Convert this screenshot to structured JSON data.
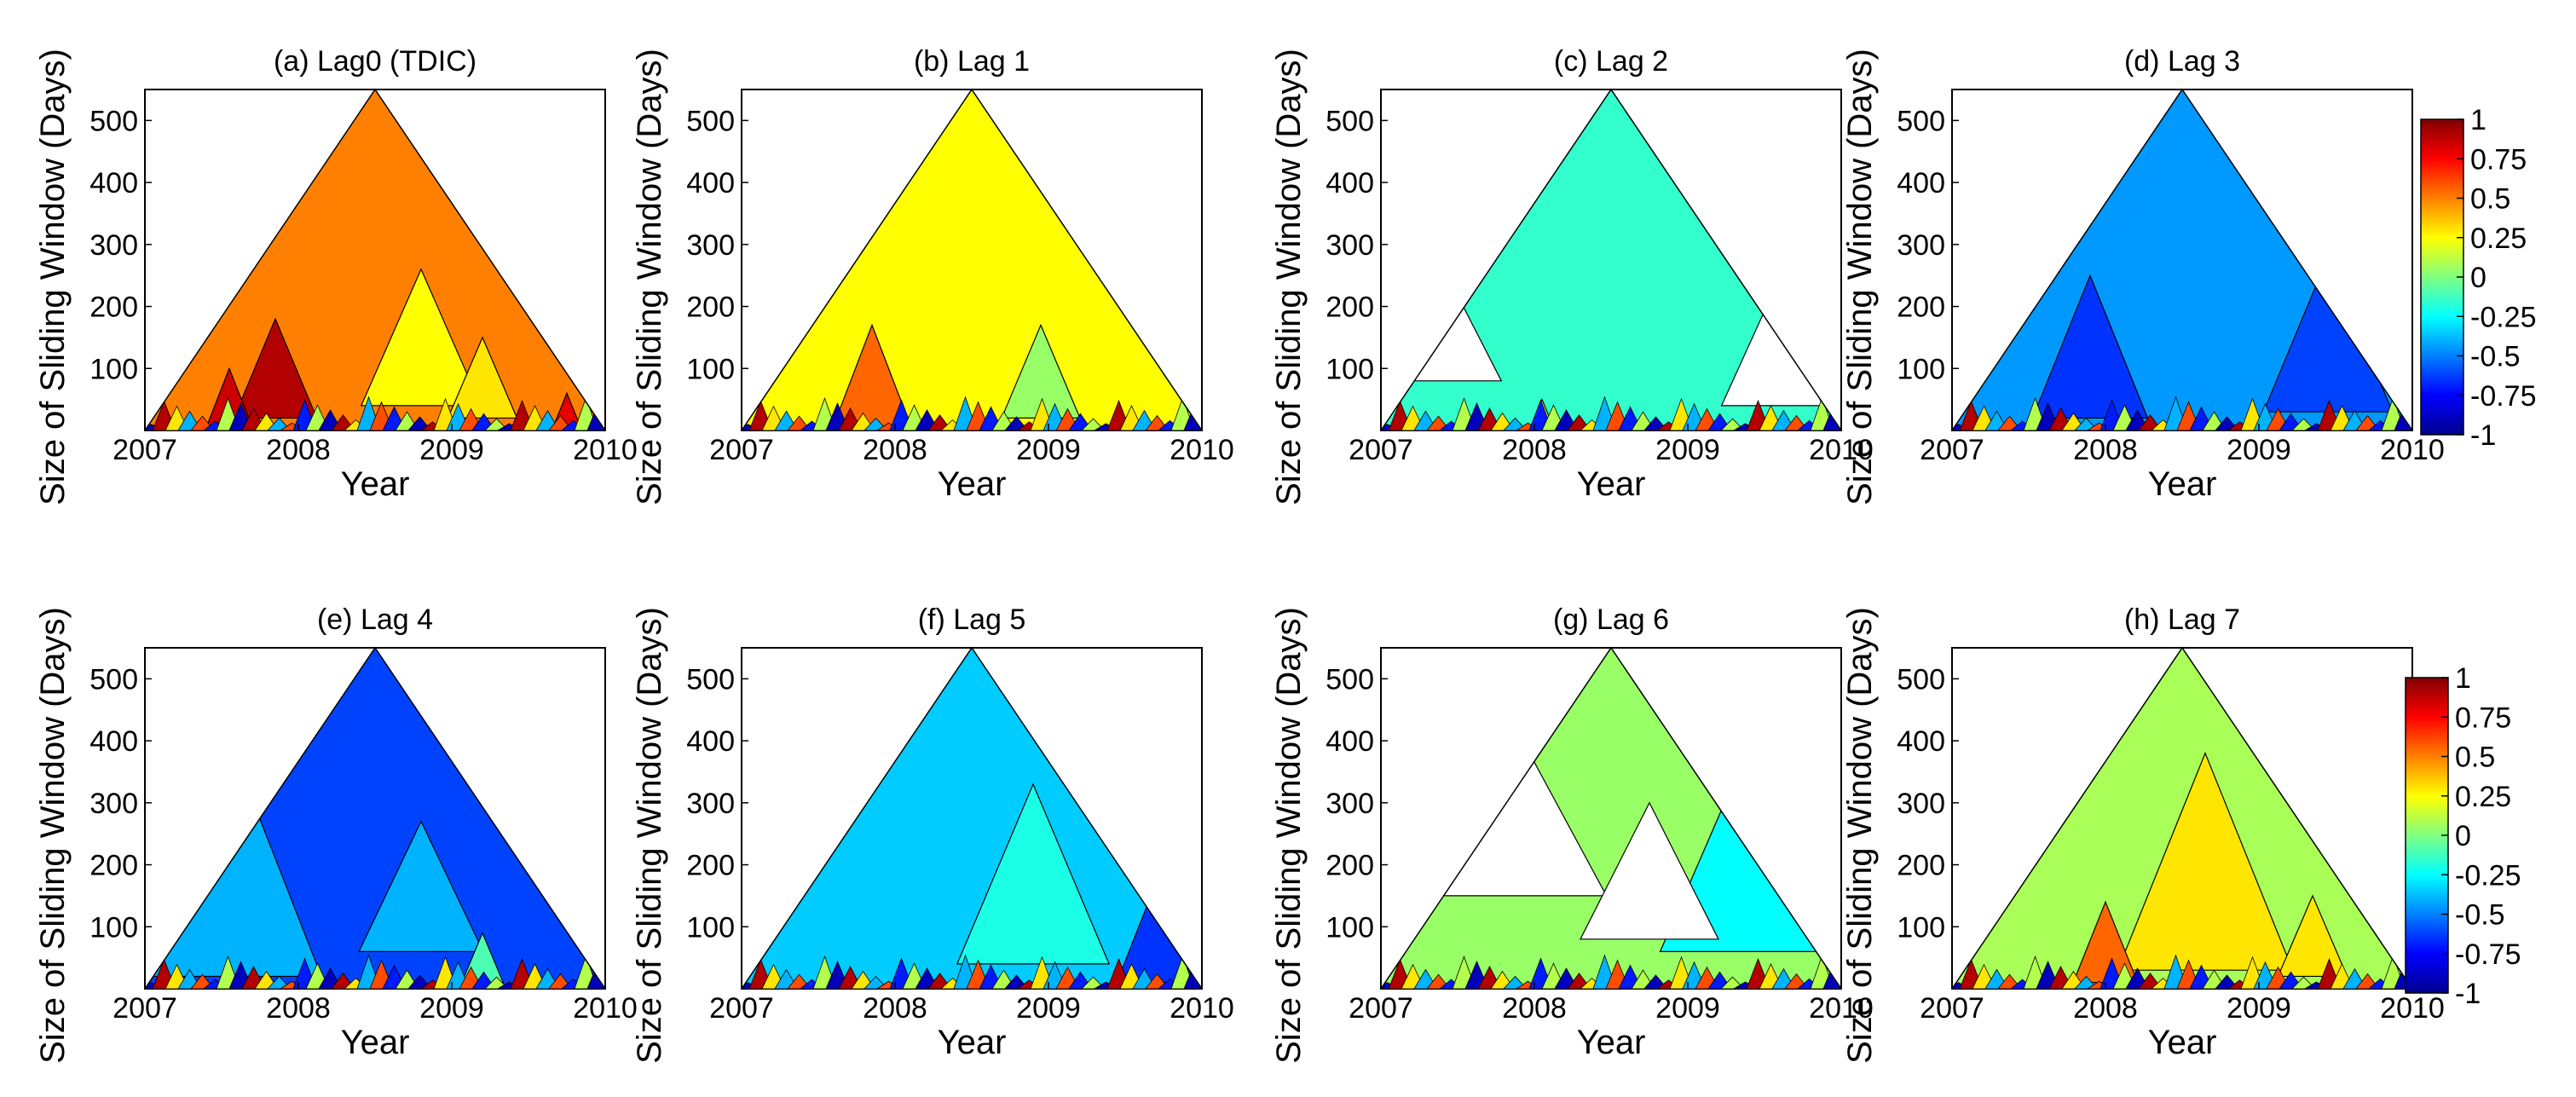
{
  "figure": {
    "colorscale": [
      "#00008f",
      "#0000ff",
      "#0080ff",
      "#00ffff",
      "#80ff80",
      "#ffff00",
      "#ff8000",
      "#ff0000",
      "#800000"
    ]
  },
  "chart_data": [
    {
      "type": "heatmap",
      "title": "(a) Lag0 (TDIC)",
      "xlabel": "Year",
      "ylabel": "Size of Sliding Window (Days)",
      "x_ticks": [
        "2007",
        "2008",
        "2009",
        "2010"
      ],
      "xlim": [
        2007,
        2010
      ],
      "y_ticks": [
        "100",
        "200",
        "300",
        "400",
        "500"
      ],
      "ylim": [
        0,
        550
      ],
      "dominant_value": 0.5,
      "regions": [
        {
          "x": 2007.85,
          "w_lo": 20,
          "w_hi": 180,
          "value": 0.9
        },
        {
          "x": 2007.55,
          "w_lo": 5,
          "w_hi": 100,
          "value": 0.85
        },
        {
          "x": 2008.8,
          "w_lo": 40,
          "w_hi": 260,
          "value": 0.25
        },
        {
          "x": 2009.2,
          "w_lo": 20,
          "w_hi": 150,
          "value": 0.3
        },
        {
          "x": 2009.75,
          "w_lo": 5,
          "w_hi": 60,
          "value": 0.8
        }
      ]
    },
    {
      "type": "heatmap",
      "title": "(b) Lag 1",
      "xlabel": "Year",
      "ylabel": "Size of Sliding Window (Days)",
      "x_ticks": [
        "2007",
        "2008",
        "2009",
        "2010"
      ],
      "xlim": [
        2007,
        2010
      ],
      "y_ticks": [
        "100",
        "200",
        "300",
        "400",
        "500"
      ],
      "ylim": [
        0,
        550
      ],
      "dominant_value": 0.25,
      "regions": [
        {
          "x": 2007.85,
          "w_lo": 5,
          "w_hi": 170,
          "value": 0.55
        },
        {
          "x": 2008.95,
          "w_lo": 20,
          "w_hi": 170,
          "value": 0.05
        }
      ]
    },
    {
      "type": "heatmap",
      "title": "(c) Lag 2",
      "xlabel": "Year",
      "ylabel": "Size of Sliding Window (Days)",
      "x_ticks": [
        "2007",
        "2008",
        "2009",
        "2010"
      ],
      "xlim": [
        2007,
        2010
      ],
      "y_ticks": [
        "100",
        "200",
        "300",
        "400",
        "500"
      ],
      "ylim": [
        0,
        550
      ],
      "dominant_value": -0.15,
      "regions": [
        {
          "x": 2007.35,
          "w_lo": 80,
          "w_hi": 290,
          "value": null
        },
        {
          "x": 2009.55,
          "w_lo": 40,
          "w_hi": 220,
          "value": null
        },
        {
          "x": 2008.05,
          "w_lo": 5,
          "w_hi": 50,
          "value": 0.2
        }
      ]
    },
    {
      "type": "heatmap",
      "title": "(d) Lag 3",
      "xlabel": "Year",
      "ylabel": "Size of Sliding Window (Days)",
      "x_ticks": [
        "2007",
        "2008",
        "2009",
        "2010"
      ],
      "xlim": [
        2007,
        2010
      ],
      "y_ticks": [
        "100",
        "200",
        "300",
        "400",
        "500"
      ],
      "ylim": [
        0,
        550
      ],
      "dominant_value": -0.45,
      "regions": [
        {
          "x": 2007.9,
          "w_lo": 20,
          "w_hi": 250,
          "value": -0.65
        },
        {
          "x": 2009.45,
          "w_lo": 30,
          "w_hi": 280,
          "value": -0.62
        }
      ]
    },
    {
      "type": "heatmap",
      "title": "(e) Lag 4",
      "xlabel": "Year",
      "ylabel": "Size of Sliding Window (Days)",
      "x_ticks": [
        "2007",
        "2008",
        "2009",
        "2010"
      ],
      "xlim": [
        2007,
        2010
      ],
      "y_ticks": [
        "100",
        "200",
        "300",
        "400",
        "500"
      ],
      "ylim": [
        0,
        550
      ],
      "dominant_value": -0.62,
      "regions": [
        {
          "x": 2007.55,
          "w_lo": 20,
          "w_hi": 400,
          "value": -0.4
        },
        {
          "x": 2008.8,
          "w_lo": 60,
          "w_hi": 270,
          "value": -0.4
        },
        {
          "x": 2009.2,
          "w_lo": 10,
          "w_hi": 90,
          "value": -0.1
        }
      ]
    },
    {
      "type": "heatmap",
      "title": "(f)  Lag 5",
      "xlabel": "Year",
      "ylabel": "Size of Sliding Window (Days)",
      "x_ticks": [
        "2007",
        "2008",
        "2009",
        "2010"
      ],
      "xlim": [
        2007,
        2010
      ],
      "y_ticks": [
        "100",
        "200",
        "300",
        "400",
        "500"
      ],
      "ylim": [
        0,
        550
      ],
      "dominant_value": -0.35,
      "regions": [
        {
          "x": 2008.9,
          "w_lo": 40,
          "w_hi": 330,
          "value": -0.2
        },
        {
          "x": 2009.7,
          "w_lo": 10,
          "w_hi": 170,
          "value": -0.65
        }
      ]
    },
    {
      "type": "heatmap",
      "title": "(g) Lag 6",
      "xlabel": "Year",
      "ylabel": "Size of Sliding Window (Days)",
      "x_ticks": [
        "2007",
        "2008",
        "2009",
        "2010"
      ],
      "xlim": [
        2007,
        2010
      ],
      "y_ticks": [
        "100",
        "200",
        "300",
        "400",
        "500"
      ],
      "ylim": [
        0,
        550
      ],
      "dominant_value": 0.05,
      "regions": [
        {
          "x": 2007.75,
          "w_lo": 150,
          "w_hi": 480,
          "value": null
        },
        {
          "x": 2009.45,
          "w_lo": 60,
          "w_hi": 420,
          "value": -0.25
        },
        {
          "x": 2008.75,
          "w_lo": 80,
          "w_hi": 300,
          "value": null
        }
      ]
    },
    {
      "type": "heatmap",
      "title": "(h) Lag 7",
      "xlabel": "Year",
      "ylabel": "Size of Sliding Window (Days)",
      "x_ticks": [
        "2007",
        "2008",
        "2009",
        "2010"
      ],
      "xlim": [
        2007,
        2010
      ],
      "y_ticks": [
        "100",
        "200",
        "300",
        "400",
        "500"
      ],
      "ylim": [
        0,
        550
      ],
      "dominant_value": 0.08,
      "regions": [
        {
          "x": 2008.65,
          "w_lo": 30,
          "w_hi": 380,
          "value": 0.3
        },
        {
          "x": 2008.0,
          "w_lo": 10,
          "w_hi": 140,
          "value": 0.55
        },
        {
          "x": 2009.35,
          "w_lo": 20,
          "w_hi": 150,
          "value": 0.3
        }
      ]
    }
  ],
  "colorbars": [
    {
      "ticks": [
        "1",
        "0.75",
        "0.5",
        "0.25",
        "0",
        "-0.25",
        "-0.5",
        "-0.75",
        "-1"
      ],
      "range": [
        -1,
        1
      ]
    },
    {
      "ticks": [
        "1",
        "0.75",
        "0.5",
        "0.25",
        "0",
        "-0.25",
        "-0.5",
        "-0.75",
        "-1"
      ],
      "range": [
        -1,
        1
      ]
    }
  ]
}
